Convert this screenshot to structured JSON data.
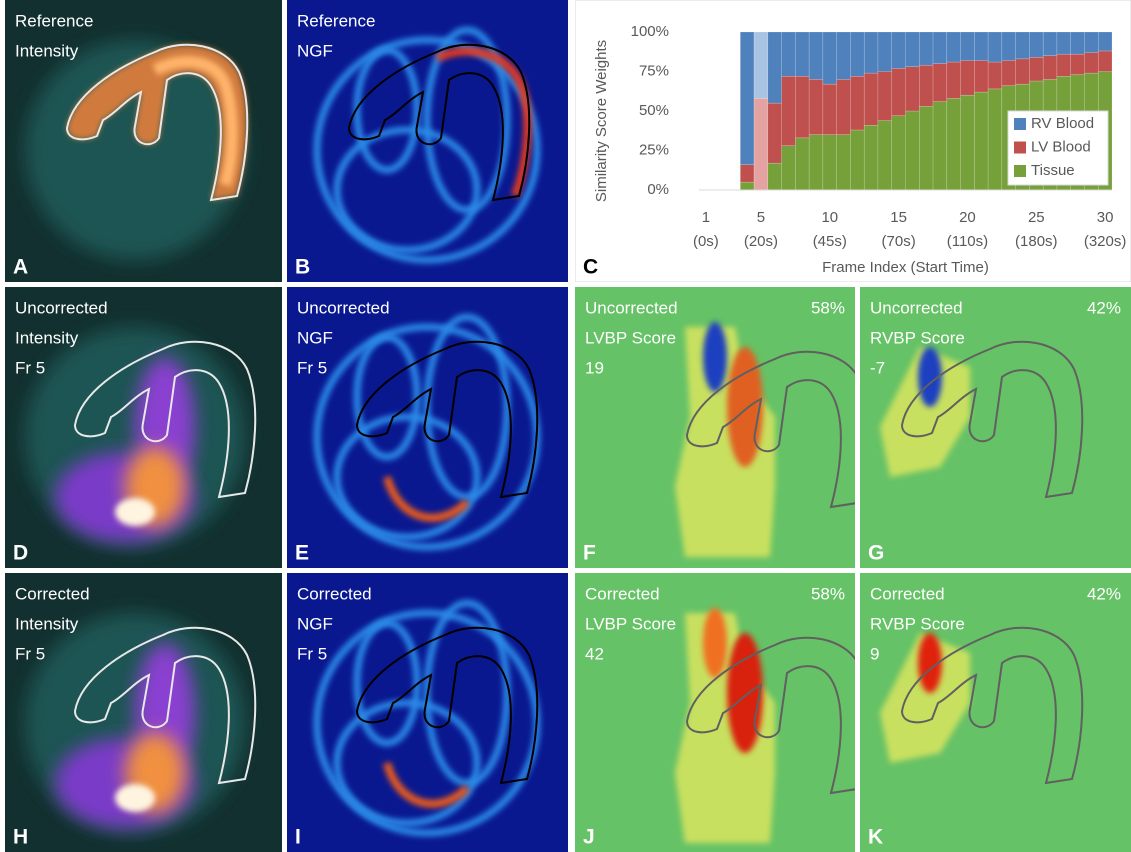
{
  "panels": [
    {
      "letter": "A",
      "lines": [
        "Reference",
        "Intensity"
      ]
    },
    {
      "letter": "B",
      "lines": [
        "Reference",
        "NGF"
      ]
    },
    {
      "letter": "C"
    },
    {
      "letter": "D",
      "lines": [
        "Uncorrected",
        "Intensity",
        "Fr 5"
      ]
    },
    {
      "letter": "E",
      "lines": [
        "Uncorrected",
        "NGF",
        "Fr 5"
      ]
    },
    {
      "letter": "F",
      "lines": [
        "Uncorrected",
        "LVBP Score",
        "19"
      ],
      "corner": "58%"
    },
    {
      "letter": "G",
      "lines": [
        "Uncorrected",
        "RVBP Score",
        "-7"
      ],
      "corner": "42%"
    },
    {
      "letter": "H",
      "lines": [
        "Corrected",
        "Intensity",
        "Fr 5"
      ]
    },
    {
      "letter": "I",
      "lines": [
        "Corrected",
        "NGF",
        "Fr 5"
      ]
    },
    {
      "letter": "J",
      "lines": [
        "Corrected",
        "LVBP Score",
        "42"
      ],
      "corner": "58%"
    },
    {
      "letter": "K",
      "lines": [
        "Corrected",
        "RVBP Score",
        "9"
      ],
      "corner": "42%"
    }
  ],
  "chart_data": {
    "type": "stacked_bar",
    "x_label": "Frame Index (Start Time)",
    "y_label": "Similarity Score Weights",
    "categories": [
      "1",
      null,
      null,
      null,
      "5",
      null,
      null,
      null,
      null,
      "10",
      null,
      null,
      null,
      null,
      "15",
      null,
      null,
      null,
      null,
      "20",
      null,
      null,
      null,
      null,
      "25",
      null,
      null,
      null,
      null,
      "30"
    ],
    "category_times": [
      "(0s)",
      null,
      null,
      null,
      "(20s)",
      null,
      null,
      null,
      null,
      "(45s)",
      null,
      null,
      null,
      null,
      "(70s)",
      null,
      null,
      null,
      null,
      "(110s)",
      null,
      null,
      null,
      null,
      "(180s)",
      null,
      null,
      null,
      null,
      "(320s)"
    ],
    "series": [
      {
        "name": "Tissue",
        "color": "#76a03a",
        "highlight_color": "#b6d09a",
        "values": [
          0,
          0,
          0,
          5,
          0,
          17,
          28,
          33,
          35,
          35,
          35,
          38,
          41,
          44,
          47,
          50,
          53,
          56,
          58,
          60,
          62,
          64,
          66,
          67,
          69,
          70,
          72,
          73,
          74,
          75
        ]
      },
      {
        "name": "LV Blood",
        "color": "#c0504d",
        "highlight_color": "#e4a3a1",
        "values": [
          0,
          0,
          0,
          11,
          58,
          38,
          44,
          39,
          35,
          32,
          35,
          34,
          33,
          31,
          30,
          28,
          26,
          24,
          23,
          22,
          20,
          17,
          16,
          16,
          15,
          15,
          14,
          13,
          13,
          13
        ]
      },
      {
        "name": "RV Blood",
        "color": "#4f81bd",
        "highlight_color": "#a9c3e2",
        "values": [
          0,
          0,
          0,
          84,
          42,
          45,
          28,
          28,
          30,
          33,
          30,
          28,
          26,
          25,
          23,
          22,
          21,
          20,
          19,
          18,
          18,
          19,
          18,
          17,
          16,
          15,
          14,
          14,
          13,
          12
        ]
      }
    ],
    "highlight_index": 4,
    "ylim": [
      0,
      100
    ],
    "yticks": [
      {
        "value": 0,
        "label": "0%"
      },
      {
        "value": 25,
        "label": "25%"
      },
      {
        "value": 50,
        "label": "50%"
      },
      {
        "value": 75,
        "label": "75%"
      },
      {
        "value": 100,
        "label": "100%"
      }
    ],
    "legend": "lower right"
  }
}
